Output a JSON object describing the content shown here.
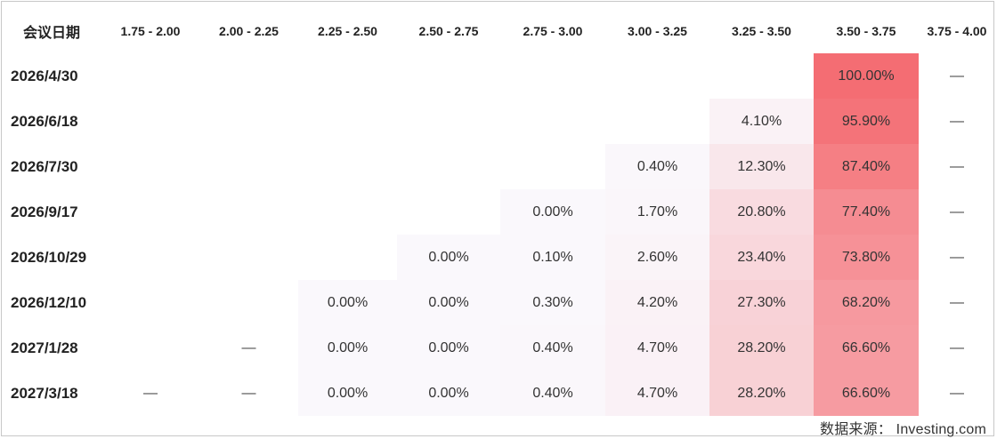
{
  "table": {
    "date_header": "会议日期",
    "ranges": [
      "1.75 - 2.00",
      "2.00 - 2.25",
      "2.25 - 2.50",
      "2.50 - 2.75",
      "2.75 - 3.00",
      "3.00 - 3.25",
      "3.25 - 3.50",
      "3.50 - 3.75",
      "3.75 - 4.00"
    ],
    "rows": [
      {
        "date": "2026/4/30",
        "cells": [
          "",
          "",
          "",
          "",
          "",
          "",
          "",
          "100.00%",
          "—"
        ]
      },
      {
        "date": "2026/6/18",
        "cells": [
          "",
          "",
          "",
          "",
          "",
          "",
          "4.10%",
          "95.90%",
          "—"
        ]
      },
      {
        "date": "2026/7/30",
        "cells": [
          "",
          "",
          "",
          "",
          "",
          "0.40%",
          "12.30%",
          "87.40%",
          "—"
        ]
      },
      {
        "date": "2026/9/17",
        "cells": [
          "",
          "",
          "",
          "",
          "0.00%",
          "1.70%",
          "20.80%",
          "77.40%",
          "—"
        ]
      },
      {
        "date": "2026/10/29",
        "cells": [
          "",
          "",
          "",
          "0.00%",
          "0.10%",
          "2.60%",
          "23.40%",
          "73.80%",
          "—"
        ]
      },
      {
        "date": "2026/12/10",
        "cells": [
          "",
          "",
          "0.00%",
          "0.00%",
          "0.30%",
          "4.20%",
          "27.30%",
          "68.20%",
          "—"
        ]
      },
      {
        "date": "2027/1/28",
        "cells": [
          "",
          "—",
          "0.00%",
          "0.00%",
          "0.40%",
          "4.70%",
          "28.20%",
          "66.60%",
          "—"
        ]
      },
      {
        "date": "2027/3/18",
        "cells": [
          "—",
          "—",
          "0.00%",
          "0.00%",
          "0.40%",
          "4.70%",
          "28.20%",
          "66.60%",
          "—"
        ]
      }
    ]
  },
  "heat_colors": {
    "low": "#faf8fc",
    "high": "#f46d73"
  },
  "source": "数据来源：  Investing.com"
}
